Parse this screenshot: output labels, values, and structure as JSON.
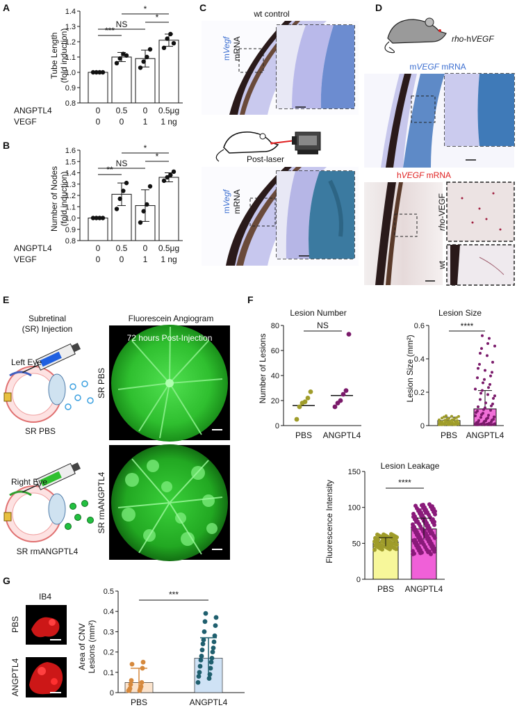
{
  "panels": {
    "A": {
      "letter": "A",
      "ylabel": "Tube Length",
      "ylabel2": "(fold induction)",
      "row1_label": "ANGPTL4",
      "row2_label": "VEGF",
      "row1": [
        "0",
        "0.5",
        "0",
        "0.5μg"
      ],
      "row2": [
        "0",
        "0",
        "1",
        "1 ng"
      ],
      "sig": [
        "***",
        "NS",
        "*",
        "*"
      ],
      "chart_data": {
        "type": "bar",
        "categories": [
          "0/0",
          "0.5/0",
          "0/1",
          "0.5/1"
        ],
        "values": [
          1.0,
          1.1,
          1.09,
          1.21
        ],
        "errors": [
          0.0,
          0.03,
          0.055,
          0.04
        ],
        "points": [
          [
            1.0,
            1.0,
            1.0,
            1.0
          ],
          [
            1.06,
            1.09,
            1.12,
            1.11
          ],
          [
            1.03,
            1.07,
            1.1,
            1.15
          ],
          [
            1.16,
            1.22,
            1.25,
            1.19
          ]
        ],
        "ylim": [
          0.8,
          1.4
        ],
        "yticks": [
          "0.8",
          "0.9",
          "1.0",
          "1.1",
          "1.2",
          "1.3",
          "1.4"
        ]
      }
    },
    "B": {
      "letter": "B",
      "ylabel": "Number of Nodes",
      "ylabel2": "(fold induction)",
      "row1_label": "ANGPTL4",
      "row2_label": "VEGF",
      "row1": [
        "0",
        "0.5",
        "0",
        "0.5μg"
      ],
      "row2": [
        "0",
        "0",
        "1",
        "1 ng"
      ],
      "sig": [
        "**",
        "NS",
        "*",
        "*"
      ],
      "chart_data": {
        "type": "bar",
        "categories": [
          "0/0",
          "0.5/0",
          "0/1",
          "0.5/1"
        ],
        "values": [
          1.0,
          1.21,
          1.11,
          1.36
        ],
        "errors": [
          0.0,
          0.1,
          0.14,
          0.04
        ],
        "points": [
          [
            1.0,
            1.0,
            1.0,
            1.0
          ],
          [
            1.08,
            1.17,
            1.24,
            1.31
          ],
          [
            0.96,
            1.06,
            1.12,
            1.28
          ],
          [
            1.33,
            1.36,
            1.38,
            1.41
          ]
        ],
        "ylim": [
          0.8,
          1.6
        ],
        "yticks": [
          "0.8",
          "0.9",
          "1.0",
          "1.1",
          "1.2",
          "1.3",
          "1.4",
          "1.5",
          "1.6"
        ]
      }
    },
    "C": {
      "letter": "C",
      "title_top": "wt control",
      "label_top_1": "m",
      "label_top_2": "Vegf",
      "label_top_3": "mRNA",
      "title_bottom": "Post-laser",
      "label_bot_1": "m",
      "label_bot_2": "Vegf",
      "label_bot_3": "mRNA"
    },
    "D": {
      "letter": "D",
      "mouse_label_1": "rho",
      "mouse_label_2": "-h",
      "mouse_label_3": "VEGF",
      "m_label_1": "m",
      "m_label_2": "VEGF",
      "m_label_3": " mRNA",
      "h_label_1": "h",
      "h_label_2": "VEGF",
      "h_label_3": " mRNA",
      "side_1a": "rho",
      "side_1b": "-VEGF",
      "side_2": "wt"
    },
    "E": {
      "letter": "E",
      "inj_title_1": "Subretinal",
      "inj_title_2": "(SR) Injection",
      "angio_title": "Fluorescein Angiogram",
      "time_label": "72 hours Post-Injection",
      "left_eye": "Left Eye",
      "right_eye": "Right Eye",
      "sr_pbs": "SR PBS",
      "sr_rm": "SR rmANGPTL4",
      "side_pbs": "SR PBS",
      "side_rm": "SR rmANGPTL4"
    },
    "F": {
      "letter": "F",
      "num": {
        "title": "Lesion Number",
        "ylabel": "Number of Lesions",
        "sig": "NS",
        "chart_data": {
          "type": "scatter",
          "categories": [
            "PBS",
            "ANGPTL4"
          ],
          "medians": [
            16,
            24
          ],
          "points": [
            [
              5,
              15,
              18,
              19,
              22,
              27
            ],
            [
              15,
              18,
              20,
              25,
              28,
              73
            ]
          ],
          "ylim": [
            0,
            80
          ],
          "yticks": [
            "0",
            "20",
            "40",
            "60",
            "80"
          ]
        }
      },
      "size": {
        "title": "Lesion Size",
        "ylabel": "Lesion Size (mm²)",
        "sig": "****",
        "chart_data": {
          "type": "bar",
          "categories": [
            "PBS",
            "ANGPTL4"
          ],
          "values": [
            0.03,
            0.1
          ],
          "errors": [
            0.02,
            0.11
          ],
          "ylim": [
            0,
            0.6
          ],
          "yticks": [
            "0",
            "0.2",
            "0.4",
            "0.6"
          ]
        }
      },
      "leak": {
        "title": "Lesion Leakage",
        "ylabel": "Fluorescence Intensity",
        "sig": "****",
        "chart_data": {
          "type": "bar",
          "categories": [
            "PBS",
            "ANGPTL4"
          ],
          "values": [
            52,
            70
          ],
          "errors": [
            6,
            15
          ],
          "ylim": [
            0,
            150
          ],
          "yticks": [
            "0",
            "50",
            "100",
            "150"
          ],
          "colors": [
            "#f7f79a",
            "#f060d8"
          ]
        }
      }
    },
    "G": {
      "letter": "G",
      "ib4": "IB4",
      "row_pbs": "PBS",
      "row_ang": "ANGPTL4",
      "ylabel_1": "Area of CNV",
      "ylabel_2": "Lesions (mm²)",
      "sig": "***",
      "chart_data": {
        "type": "bar",
        "categories": [
          "PBS",
          "ANGPTL4"
        ],
        "values": [
          0.05,
          0.17
        ],
        "errors": [
          0.07,
          0.1
        ],
        "points": [
          [
            0.01,
            0.01,
            0.01,
            0.02,
            0.02,
            0.03,
            0.04,
            0.05,
            0.06,
            0.12,
            0.14,
            0.15
          ],
          [
            0.05,
            0.07,
            0.08,
            0.09,
            0.1,
            0.12,
            0.13,
            0.15,
            0.16,
            0.17,
            0.18,
            0.2,
            0.21,
            0.22,
            0.24,
            0.25,
            0.26,
            0.28,
            0.3,
            0.33,
            0.35,
            0.37,
            0.39
          ]
        ],
        "ylim": [
          0,
          0.5
        ],
        "yticks": [
          "0",
          "0.1",
          "0.2",
          "0.3",
          "0.4",
          "0.5"
        ],
        "colors": [
          "#fbe3cc",
          "#cfe2f5"
        ],
        "dot_colors": [
          "#d6893d",
          "#1f5f6e"
        ]
      }
    }
  }
}
